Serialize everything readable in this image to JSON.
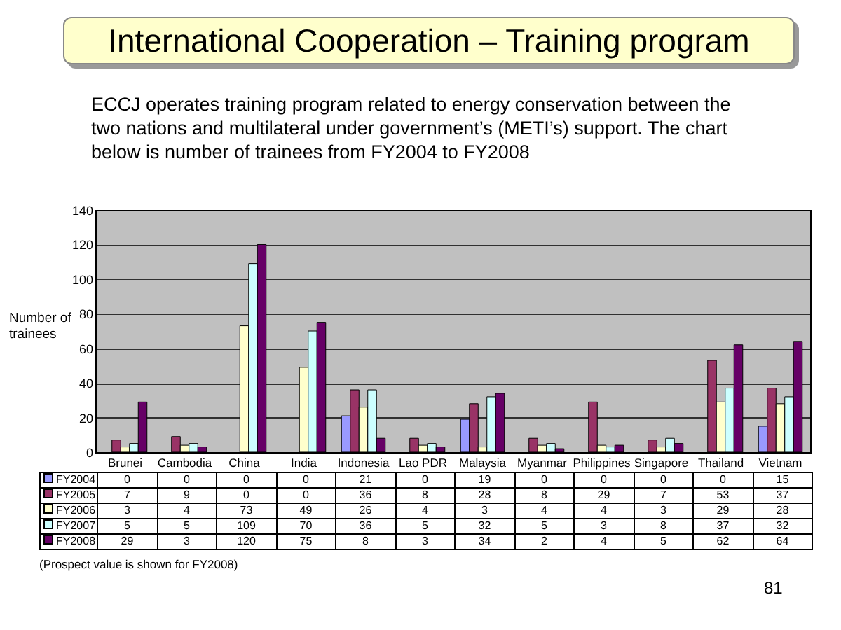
{
  "chart_data": {
    "type": "bar",
    "title": "International Cooperation – Training program",
    "subtitle": "ECCJ operates training program related to energy conservation between the two nations and multilateral under government’s (METI’s) support. The chart below is number of trainees from FY2004 to FY2008",
    "ylabel": "Number of trainees",
    "categories": [
      "Brunei",
      "Cambodia",
      "China",
      "India",
      "Indonesia",
      "Lao PDR",
      "Malaysia",
      "Myanmar",
      "Philippines",
      "Singapore",
      "Thailand",
      "Vietnam"
    ],
    "series": [
      {
        "name": "FY2004",
        "color": "#9999ff",
        "values": [
          0,
          0,
          0,
          0,
          21,
          0,
          19,
          0,
          0,
          0,
          0,
          15
        ]
      },
      {
        "name": "FY2005",
        "color": "#993366",
        "values": [
          7,
          9,
          0,
          0,
          36,
          8,
          28,
          8,
          29,
          7,
          53,
          37
        ]
      },
      {
        "name": "FY2006",
        "color": "#ffffcc",
        "values": [
          3,
          4,
          73,
          49,
          26,
          4,
          3,
          4,
          4,
          3,
          29,
          28
        ]
      },
      {
        "name": "FY2007",
        "color": "#ccffff",
        "values": [
          5,
          5,
          109,
          70,
          36,
          5,
          32,
          5,
          3,
          8,
          37,
          32
        ]
      },
      {
        "name": "FY2008",
        "color": "#660066",
        "values": [
          29,
          3,
          120,
          75,
          8,
          3,
          34,
          2,
          4,
          5,
          62,
          64
        ]
      }
    ],
    "ylim": [
      0,
      140
    ],
    "yticks": [
      0,
      20,
      40,
      60,
      80,
      100,
      120,
      140
    ],
    "grid": "y",
    "legend": "bottom",
    "data_labels": true,
    "annotations": [
      "(Prospect value is shown for FY2008)",
      "81"
    ]
  }
}
